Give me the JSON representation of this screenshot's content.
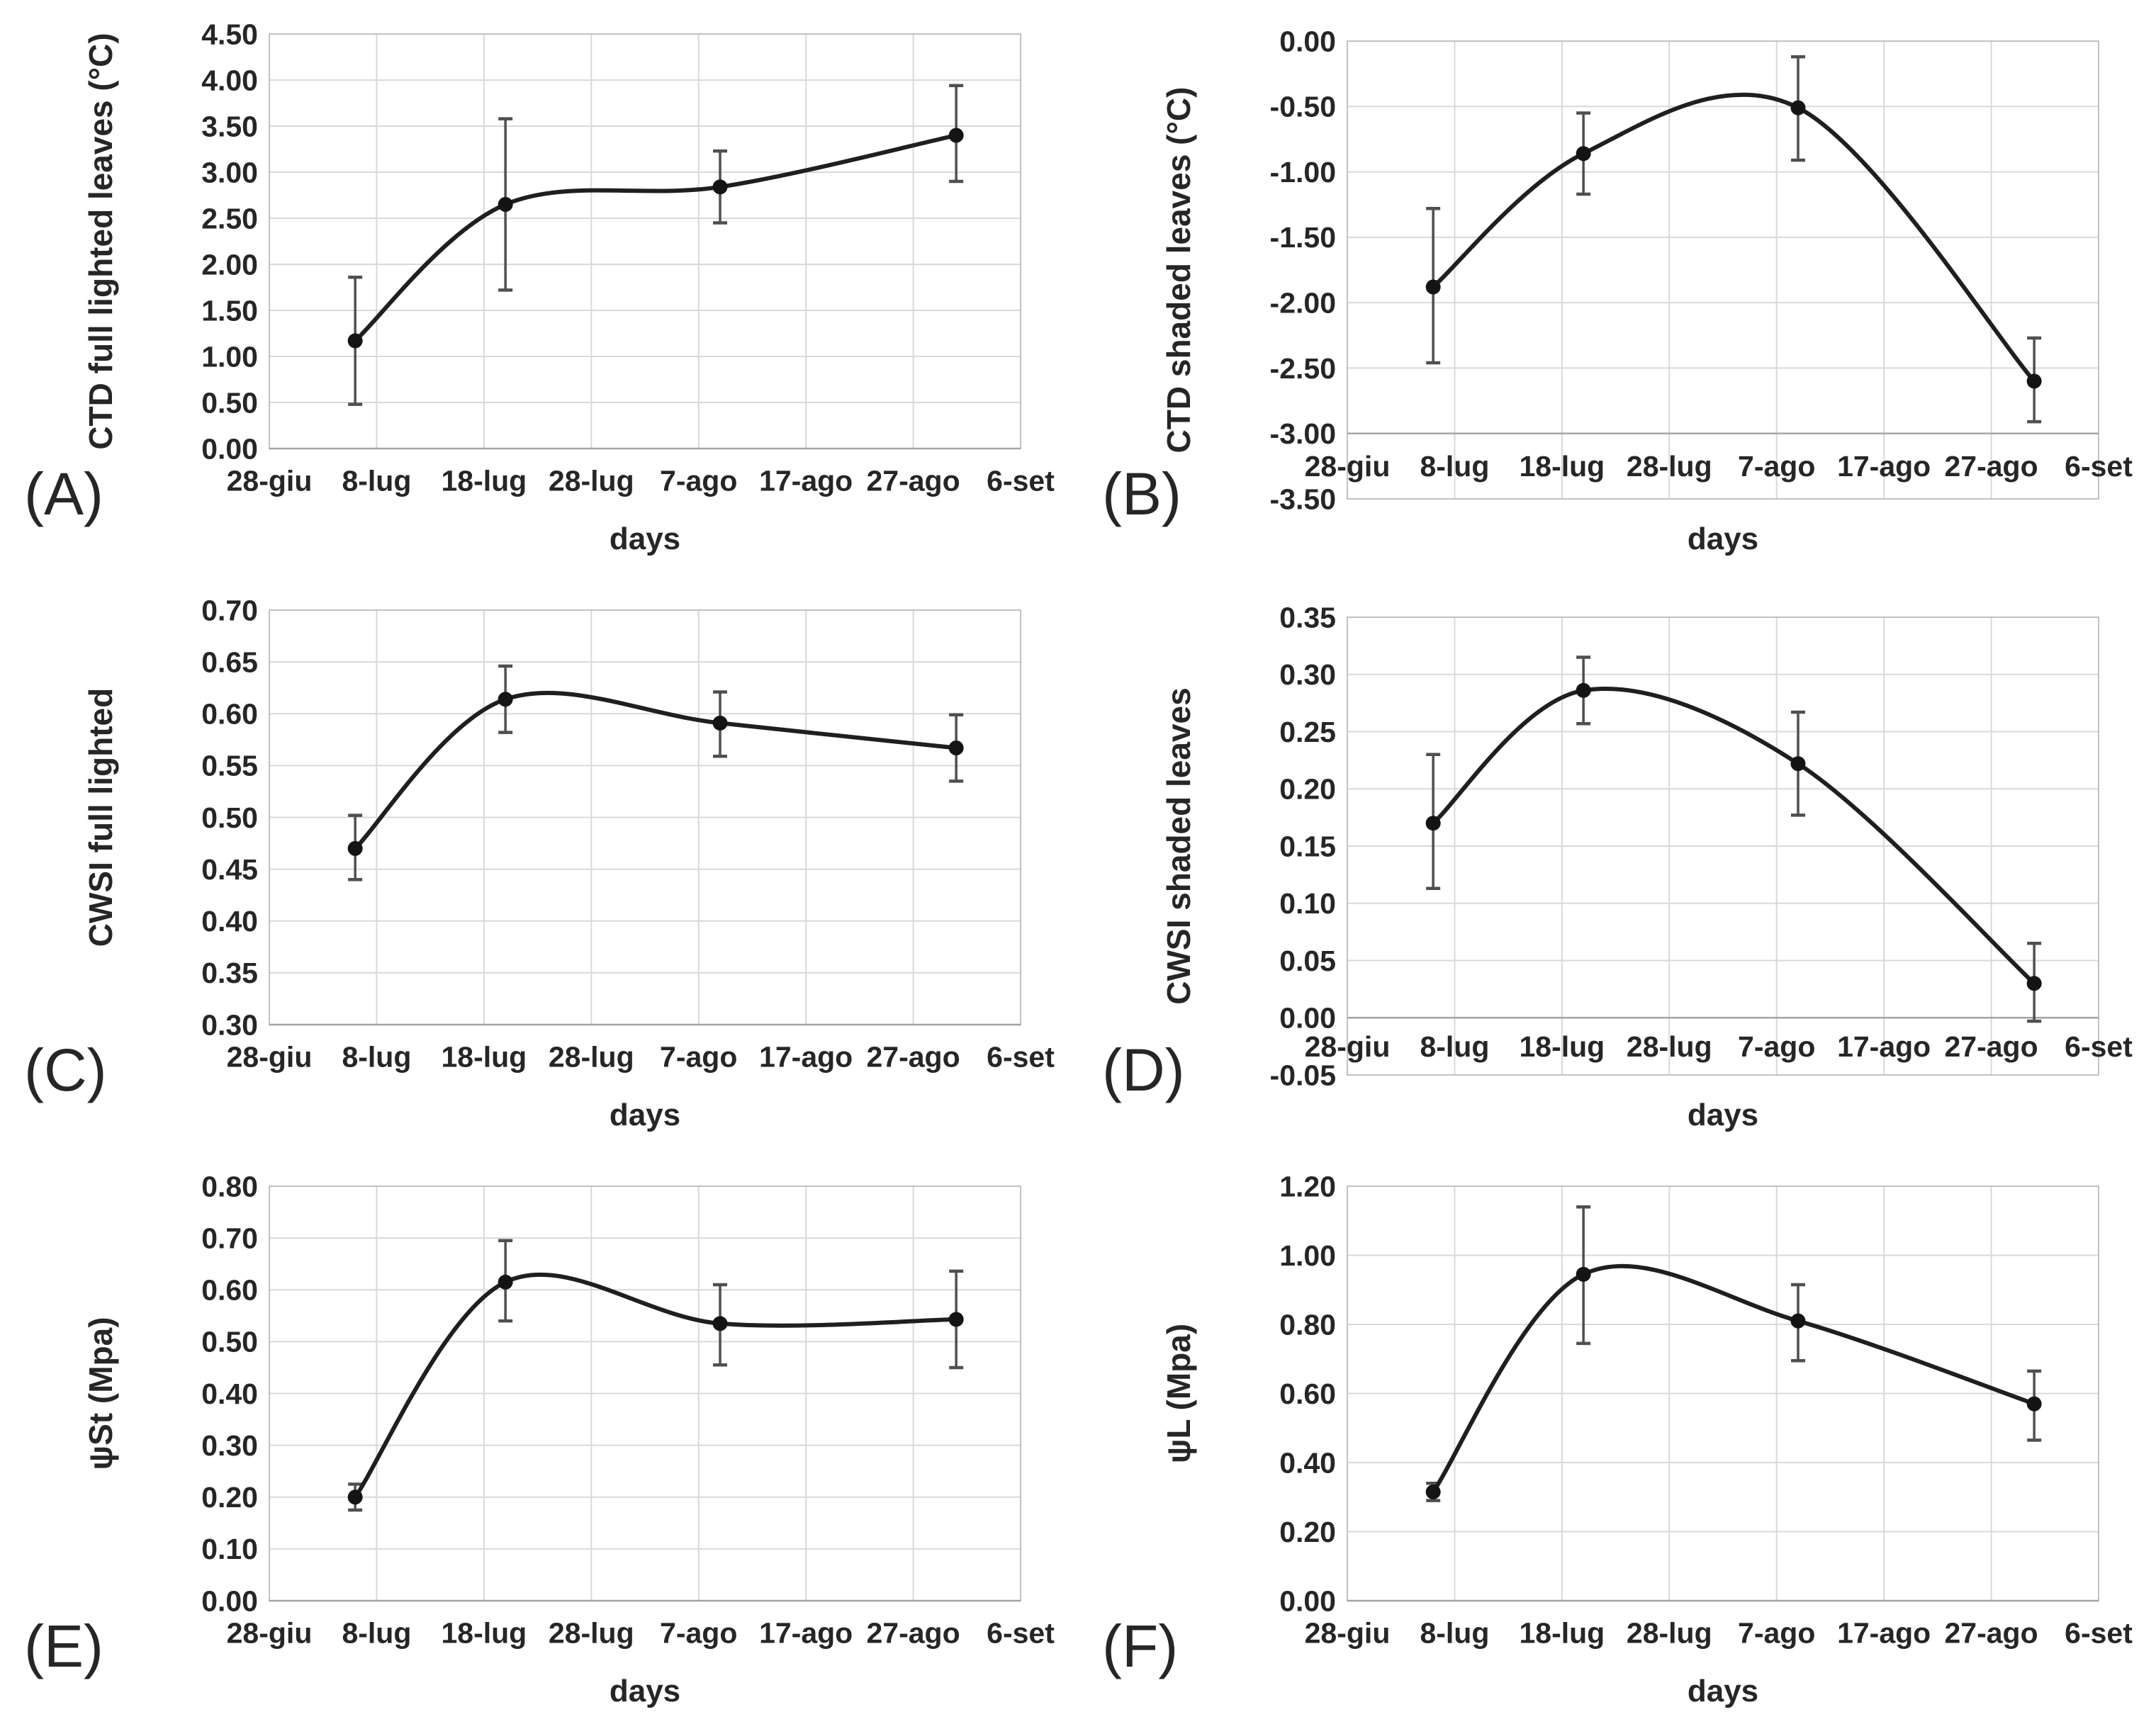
{
  "figure": {
    "description_visible_text_only": "Six-panel line chart figure with error bars",
    "x_axis_title": "days",
    "x_tick_labels": [
      "28-giu",
      "8-lug",
      "18-lug",
      "28-lug",
      "7-ago",
      "17-ago",
      "27-ago",
      "6-set"
    ]
  },
  "style": {
    "background": "#ffffff",
    "line_color": "#1f1f1f",
    "marker_color": "#141414",
    "error_bar_color": "#4f4f4f",
    "grid_color": "#d9d9d9",
    "axis_line_color": "#a3a3a3",
    "plot_border_color": "#c2c2c2",
    "text_color": "#262626"
  },
  "chart_data": [
    {
      "type": "line",
      "panel_label": "(A)",
      "ylabel": "CTD full lighted leaves (°C)",
      "xlabel": "days",
      "ylim": [
        0.0,
        4.5
      ],
      "ytick_step": 0.5,
      "ytick_decimals": 2,
      "x_tick_labels": [
        "28-giu",
        "8-lug",
        "18-lug",
        "28-lug",
        "7-ago",
        "17-ago",
        "27-ago",
        "6-set"
      ],
      "x_range_days": [
        0,
        70
      ],
      "x_days": [
        8,
        22,
        42,
        64
      ],
      "values": [
        1.17,
        2.65,
        2.84,
        3.4
      ],
      "error_low": [
        0.48,
        1.72,
        2.45,
        2.9
      ],
      "error_high": [
        1.86,
        3.58,
        3.23,
        3.94
      ],
      "grid": true,
      "smooth": true,
      "marker": "filled-circle",
      "x_labels_inside": false,
      "x_labels_at_value": null
    },
    {
      "type": "line",
      "panel_label": "(B)",
      "ylabel": "CTD shaded leaves (°C)",
      "xlabel": "days",
      "ylim": [
        -3.5,
        0.0
      ],
      "ytick_step": 0.5,
      "ytick_decimals": 2,
      "x_tick_labels": [
        "28-giu",
        "8-lug",
        "18-lug",
        "28-lug",
        "7-ago",
        "17-ago",
        "27-ago",
        "6-set"
      ],
      "x_range_days": [
        0,
        70
      ],
      "x_days": [
        8,
        22,
        42,
        64
      ],
      "values": [
        -1.88,
        -0.86,
        -0.51,
        -2.6
      ],
      "error_low": [
        -2.46,
        -1.17,
        -0.91,
        -2.91
      ],
      "error_high": [
        -1.28,
        -0.55,
        -0.12,
        -2.27
      ],
      "grid": true,
      "smooth": true,
      "marker": "filled-circle",
      "x_labels_inside": true,
      "x_labels_at_value": -3.25
    },
    {
      "type": "line",
      "panel_label": "(C)",
      "ylabel": "CWSI full lighted",
      "xlabel": "days",
      "ylim": [
        0.3,
        0.7
      ],
      "ytick_step": 0.05,
      "ytick_decimals": 2,
      "x_tick_labels": [
        "28-giu",
        "8-lug",
        "18-lug",
        "28-lug",
        "7-ago",
        "17-ago",
        "27-ago",
        "6-set"
      ],
      "x_range_days": [
        0,
        70
      ],
      "x_days": [
        8,
        22,
        42,
        64
      ],
      "values": [
        0.47,
        0.614,
        0.591,
        0.567
      ],
      "error_low": [
        0.44,
        0.582,
        0.559,
        0.535
      ],
      "error_high": [
        0.502,
        0.646,
        0.621,
        0.599
      ],
      "grid": true,
      "smooth": true,
      "marker": "filled-circle",
      "x_labels_inside": false,
      "x_labels_at_value": null
    },
    {
      "type": "line",
      "panel_label": "(D)",
      "ylabel": "CWSI shaded leaves",
      "xlabel": "days",
      "ylim": [
        -0.05,
        0.35
      ],
      "ytick_step": 0.05,
      "ytick_decimals": 2,
      "x_tick_labels": [
        "28-giu",
        "8-lug",
        "18-lug",
        "28-lug",
        "7-ago",
        "17-ago",
        "27-ago",
        "6-set"
      ],
      "x_range_days": [
        0,
        70
      ],
      "x_days": [
        8,
        22,
        42,
        64
      ],
      "values": [
        0.17,
        0.286,
        0.222,
        0.03
      ],
      "error_low": [
        0.113,
        0.257,
        0.177,
        -0.003
      ],
      "error_high": [
        0.23,
        0.315,
        0.267,
        0.065
      ],
      "grid": true,
      "smooth": true,
      "marker": "filled-circle",
      "x_labels_inside": true,
      "x_labels_at_value": -0.025
    },
    {
      "type": "line",
      "panel_label": "(E)",
      "ylabel": "ψSt (Mpa)",
      "xlabel": "days",
      "ylim": [
        0.0,
        0.8
      ],
      "ytick_step": 0.1,
      "ytick_decimals": 2,
      "x_tick_labels": [
        "28-giu",
        "8-lug",
        "18-lug",
        "28-lug",
        "7-ago",
        "17-ago",
        "27-ago",
        "6-set"
      ],
      "x_range_days": [
        0,
        70
      ],
      "x_days": [
        8,
        22,
        42,
        64
      ],
      "values": [
        0.2,
        0.615,
        0.535,
        0.543
      ],
      "error_low": [
        0.175,
        0.54,
        0.455,
        0.45
      ],
      "error_high": [
        0.225,
        0.695,
        0.61,
        0.636
      ],
      "grid": true,
      "smooth": true,
      "marker": "filled-circle",
      "x_labels_inside": false,
      "x_labels_at_value": null
    },
    {
      "type": "line",
      "panel_label": "(F)",
      "ylabel": "ψL (Mpa)",
      "xlabel": "days",
      "ylim": [
        0.0,
        1.2
      ],
      "ytick_step": 0.2,
      "ytick_decimals": 2,
      "x_tick_labels": [
        "28-giu",
        "8-lug",
        "18-lug",
        "28-lug",
        "7-ago",
        "17-ago",
        "27-ago",
        "6-set"
      ],
      "x_range_days": [
        0,
        70
      ],
      "x_days": [
        8,
        22,
        42,
        64
      ],
      "values": [
        0.315,
        0.945,
        0.81,
        0.57
      ],
      "error_low": [
        0.29,
        0.745,
        0.695,
        0.465
      ],
      "error_high": [
        0.34,
        1.14,
        0.915,
        0.665
      ],
      "grid": true,
      "smooth": true,
      "marker": "filled-circle",
      "x_labels_inside": false,
      "x_labels_at_value": null
    }
  ]
}
